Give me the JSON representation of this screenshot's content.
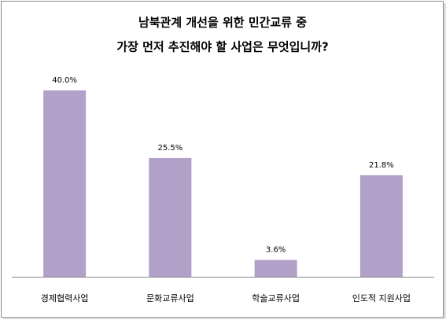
{
  "chart_data": {
    "type": "bar",
    "title": [
      "남북관계 개선을 위한 민간교류 중",
      "가장 먼저 추진해야 할 사업은 무엇입니까?"
    ],
    "categories": [
      "경제협력사업",
      "문화교류사업",
      "학술교류사업",
      "인도적 지원사업"
    ],
    "values": [
      40.0,
      25.5,
      3.6,
      21.8
    ],
    "value_labels": [
      "40.0%",
      "25.5%",
      "3.6%",
      "21.8%"
    ],
    "color": "#b1a0c7"
  }
}
